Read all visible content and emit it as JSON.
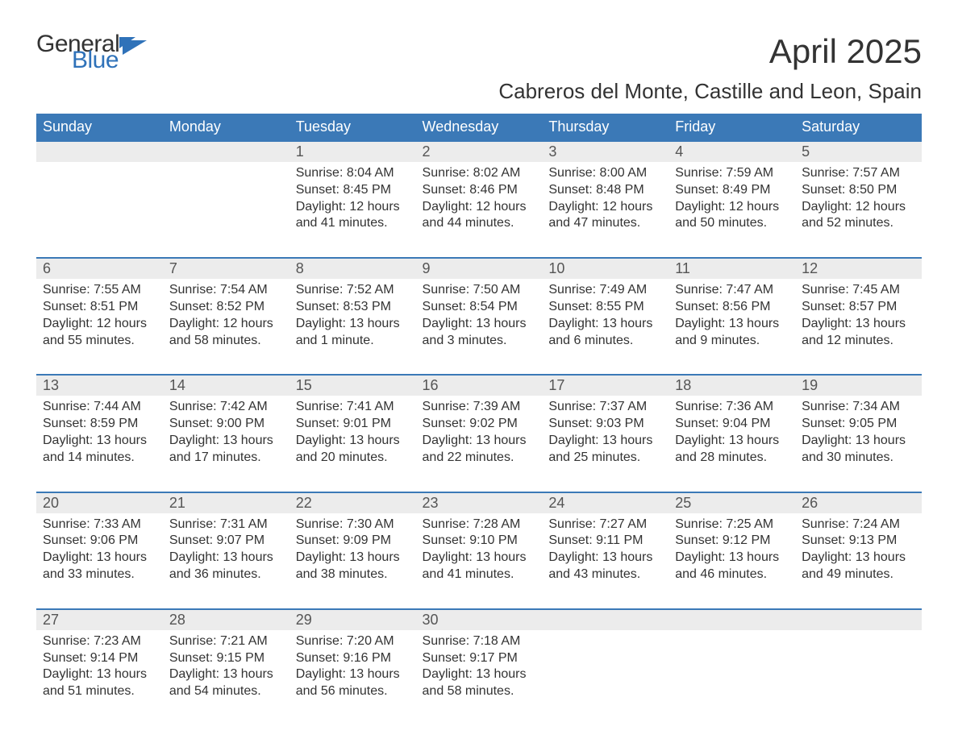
{
  "logo": {
    "top": "General",
    "bottom": "Blue",
    "color_top": "#333333",
    "color_bottom": "#2f72b9"
  },
  "title": "April 2025",
  "subtitle": "Cabreros del Monte, Castille and Leon, Spain",
  "styling": {
    "header_bg": "#3b79b7",
    "header_text": "#ffffff",
    "daynum_bg": "#ececec",
    "border_color": "#3b79b7",
    "body_text": "#333333",
    "title_fontsize": 42,
    "subtitle_fontsize": 26,
    "dayheader_fontsize": 18,
    "cell_fontsize": 16
  },
  "day_headers": [
    "Sunday",
    "Monday",
    "Tuesday",
    "Wednesday",
    "Thursday",
    "Friday",
    "Saturday"
  ],
  "weeks": [
    [
      null,
      null,
      {
        "n": "1",
        "sr": "Sunrise: 8:04 AM",
        "ss": "Sunset: 8:45 PM",
        "dl": "Daylight: 12 hours and 41 minutes."
      },
      {
        "n": "2",
        "sr": "Sunrise: 8:02 AM",
        "ss": "Sunset: 8:46 PM",
        "dl": "Daylight: 12 hours and 44 minutes."
      },
      {
        "n": "3",
        "sr": "Sunrise: 8:00 AM",
        "ss": "Sunset: 8:48 PM",
        "dl": "Daylight: 12 hours and 47 minutes."
      },
      {
        "n": "4",
        "sr": "Sunrise: 7:59 AM",
        "ss": "Sunset: 8:49 PM",
        "dl": "Daylight: 12 hours and 50 minutes."
      },
      {
        "n": "5",
        "sr": "Sunrise: 7:57 AM",
        "ss": "Sunset: 8:50 PM",
        "dl": "Daylight: 12 hours and 52 minutes."
      }
    ],
    [
      {
        "n": "6",
        "sr": "Sunrise: 7:55 AM",
        "ss": "Sunset: 8:51 PM",
        "dl": "Daylight: 12 hours and 55 minutes."
      },
      {
        "n": "7",
        "sr": "Sunrise: 7:54 AM",
        "ss": "Sunset: 8:52 PM",
        "dl": "Daylight: 12 hours and 58 minutes."
      },
      {
        "n": "8",
        "sr": "Sunrise: 7:52 AM",
        "ss": "Sunset: 8:53 PM",
        "dl": "Daylight: 13 hours and 1 minute."
      },
      {
        "n": "9",
        "sr": "Sunrise: 7:50 AM",
        "ss": "Sunset: 8:54 PM",
        "dl": "Daylight: 13 hours and 3 minutes."
      },
      {
        "n": "10",
        "sr": "Sunrise: 7:49 AM",
        "ss": "Sunset: 8:55 PM",
        "dl": "Daylight: 13 hours and 6 minutes."
      },
      {
        "n": "11",
        "sr": "Sunrise: 7:47 AM",
        "ss": "Sunset: 8:56 PM",
        "dl": "Daylight: 13 hours and 9 minutes."
      },
      {
        "n": "12",
        "sr": "Sunrise: 7:45 AM",
        "ss": "Sunset: 8:57 PM",
        "dl": "Daylight: 13 hours and 12 minutes."
      }
    ],
    [
      {
        "n": "13",
        "sr": "Sunrise: 7:44 AM",
        "ss": "Sunset: 8:59 PM",
        "dl": "Daylight: 13 hours and 14 minutes."
      },
      {
        "n": "14",
        "sr": "Sunrise: 7:42 AM",
        "ss": "Sunset: 9:00 PM",
        "dl": "Daylight: 13 hours and 17 minutes."
      },
      {
        "n": "15",
        "sr": "Sunrise: 7:41 AM",
        "ss": "Sunset: 9:01 PM",
        "dl": "Daylight: 13 hours and 20 minutes."
      },
      {
        "n": "16",
        "sr": "Sunrise: 7:39 AM",
        "ss": "Sunset: 9:02 PM",
        "dl": "Daylight: 13 hours and 22 minutes."
      },
      {
        "n": "17",
        "sr": "Sunrise: 7:37 AM",
        "ss": "Sunset: 9:03 PM",
        "dl": "Daylight: 13 hours and 25 minutes."
      },
      {
        "n": "18",
        "sr": "Sunrise: 7:36 AM",
        "ss": "Sunset: 9:04 PM",
        "dl": "Daylight: 13 hours and 28 minutes."
      },
      {
        "n": "19",
        "sr": "Sunrise: 7:34 AM",
        "ss": "Sunset: 9:05 PM",
        "dl": "Daylight: 13 hours and 30 minutes."
      }
    ],
    [
      {
        "n": "20",
        "sr": "Sunrise: 7:33 AM",
        "ss": "Sunset: 9:06 PM",
        "dl": "Daylight: 13 hours and 33 minutes."
      },
      {
        "n": "21",
        "sr": "Sunrise: 7:31 AM",
        "ss": "Sunset: 9:07 PM",
        "dl": "Daylight: 13 hours and 36 minutes."
      },
      {
        "n": "22",
        "sr": "Sunrise: 7:30 AM",
        "ss": "Sunset: 9:09 PM",
        "dl": "Daylight: 13 hours and 38 minutes."
      },
      {
        "n": "23",
        "sr": "Sunrise: 7:28 AM",
        "ss": "Sunset: 9:10 PM",
        "dl": "Daylight: 13 hours and 41 minutes."
      },
      {
        "n": "24",
        "sr": "Sunrise: 7:27 AM",
        "ss": "Sunset: 9:11 PM",
        "dl": "Daylight: 13 hours and 43 minutes."
      },
      {
        "n": "25",
        "sr": "Sunrise: 7:25 AM",
        "ss": "Sunset: 9:12 PM",
        "dl": "Daylight: 13 hours and 46 minutes."
      },
      {
        "n": "26",
        "sr": "Sunrise: 7:24 AM",
        "ss": "Sunset: 9:13 PM",
        "dl": "Daylight: 13 hours and 49 minutes."
      }
    ],
    [
      {
        "n": "27",
        "sr": "Sunrise: 7:23 AM",
        "ss": "Sunset: 9:14 PM",
        "dl": "Daylight: 13 hours and 51 minutes."
      },
      {
        "n": "28",
        "sr": "Sunrise: 7:21 AM",
        "ss": "Sunset: 9:15 PM",
        "dl": "Daylight: 13 hours and 54 minutes."
      },
      {
        "n": "29",
        "sr": "Sunrise: 7:20 AM",
        "ss": "Sunset: 9:16 PM",
        "dl": "Daylight: 13 hours and 56 minutes."
      },
      {
        "n": "30",
        "sr": "Sunrise: 7:18 AM",
        "ss": "Sunset: 9:17 PM",
        "dl": "Daylight: 13 hours and 58 minutes."
      },
      null,
      null,
      null
    ]
  ]
}
